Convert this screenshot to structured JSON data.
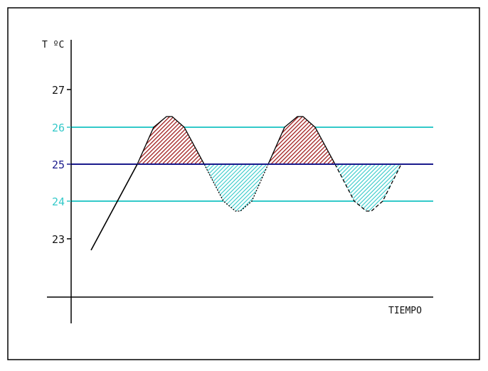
{
  "diagram": {
    "y_axis_label": "T ºC",
    "x_axis_label": "TIEMPO",
    "tick_labels": [
      {
        "text": "27",
        "role": "normal"
      },
      {
        "text": "26",
        "role": "upper-limit"
      },
      {
        "text": "25",
        "role": "setpoint"
      },
      {
        "text": "24",
        "role": "lower-limit"
      },
      {
        "text": "23",
        "role": "normal"
      }
    ],
    "colors": {
      "frame": "#000000",
      "axis": "#000000",
      "setpoint_line": "#1a1a8c",
      "limit_lines": "#33c9c9",
      "over_fill": "#a11e1e",
      "under_fill": "#33c9c9",
      "curve": "#000000"
    }
  }
}
